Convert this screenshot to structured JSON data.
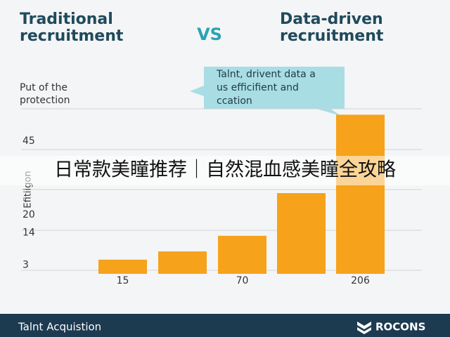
{
  "chart_data": {
    "type": "bar",
    "left_title": [
      "Traditional",
      "recruitment"
    ],
    "vs": "VS",
    "right_title": [
      "Data-driven",
      "recruitment"
    ],
    "subtitle": [
      "Put of the",
      "protection"
    ],
    "callout": [
      "Talnt, drivent data a",
      "us efficifient and",
      "ccation"
    ],
    "ylabel": "Efitiigon",
    "categories": [
      "15",
      null,
      "70",
      null,
      "206"
    ],
    "values": [
      4.8,
      7.6,
      12.9,
      27.4,
      54
    ],
    "color": "#f7a21b",
    "ylim": [
      0,
      56
    ],
    "yticks": [
      3,
      14,
      20,
      45
    ],
    "grid": true,
    "footer_left": "Talnt Acquistion",
    "footer_right": "ROCONS",
    "overlay": "日常款美瞳推荐｜自然混血感美瞳全攻略"
  }
}
